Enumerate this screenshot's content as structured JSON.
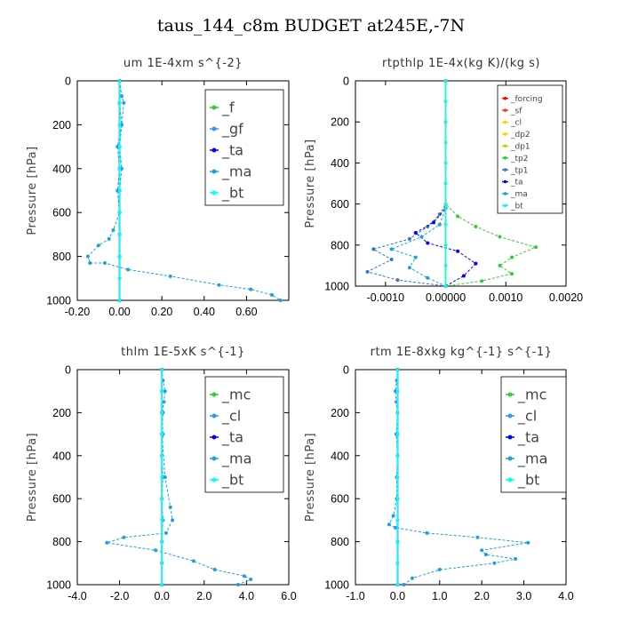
{
  "title": "taus_144_c8m  BUDGET at245E,-7N",
  "colors": {
    "f": "#33cc33",
    "gf": "#3399ee",
    "ta": "#0000ff",
    "ma": "#1f9fdf",
    "bt": "#00ffff",
    "mc": "#33cc33",
    "cl": "#3399ee",
    "forcing": "#ff0000",
    "sf": "#ff3333",
    "dp2": "#ffcc00",
    "dp1": "#cccc00",
    "tp2": "#33cc33",
    "tp1": "#3377cc"
  },
  "chart_data": [
    {
      "type": "line",
      "title": "um   1E-4xm s^{-2}",
      "ylabel": "Pressure [hPa]",
      "xlim": [
        -0.2,
        0.8
      ],
      "ylim": [
        1000,
        0
      ],
      "xticks": [
        -0.2,
        0,
        0.2,
        0.4,
        0.6
      ],
      "xtick_labels": [
        "-0.20",
        "0.00",
        "0.20",
        "0.40",
        "0.60"
      ],
      "yticks": [
        0,
        200,
        400,
        600,
        800,
        1000
      ],
      "ytick_labels": [
        "0",
        "200",
        "400",
        "600",
        "800",
        "1000"
      ],
      "legend": {
        "position": "top-right",
        "font_size": 16
      },
      "series": [
        {
          "name": "_f",
          "color_key": "f",
          "x": [
            0,
            0,
            0,
            0,
            0,
            0,
            0,
            0,
            0,
            0,
            0
          ],
          "y": [
            0,
            100,
            200,
            300,
            400,
            500,
            600,
            700,
            800,
            900,
            1000
          ]
        },
        {
          "name": "_gf",
          "color_key": "gf",
          "x": [
            0,
            0.01,
            0.02,
            0.01,
            0,
            0.01,
            0,
            0,
            0,
            0,
            0
          ],
          "y": [
            0,
            70,
            100,
            200,
            300,
            400,
            500,
            600,
            700,
            800,
            1000
          ]
        },
        {
          "name": "_ta",
          "color_key": "ta",
          "x": [
            0,
            0,
            0,
            0,
            0,
            0,
            0,
            0,
            0,
            0,
            0
          ],
          "y": [
            0,
            100,
            200,
            300,
            400,
            500,
            600,
            700,
            800,
            900,
            1000
          ]
        },
        {
          "name": "_ma",
          "color_key": "ma",
          "x": [
            0,
            0,
            0.01,
            -0.01,
            0,
            -0.01,
            0,
            -0.03,
            -0.05,
            -0.1,
            -0.15,
            -0.14,
            -0.07,
            0.04,
            0.24,
            0.47,
            0.62,
            0.72,
            0.76
          ],
          "y": [
            0,
            100,
            200,
            300,
            400,
            500,
            600,
            680,
            720,
            750,
            800,
            830,
            830,
            860,
            890,
            930,
            950,
            975,
            1000
          ]
        },
        {
          "name": "_bt",
          "color_key": "bt",
          "x": [
            0,
            0,
            0,
            0,
            0,
            0,
            0,
            0,
            0,
            0,
            0
          ],
          "y": [
            0,
            100,
            200,
            300,
            400,
            500,
            600,
            700,
            800,
            900,
            1000
          ]
        }
      ]
    },
    {
      "type": "line",
      "title": "rtpthlp   1E-4x(kg K)/(kg s)",
      "ylabel": "Pressure [hPa]",
      "xlim": [
        -0.0015,
        0.002
      ],
      "ylim": [
        1000,
        0
      ],
      "xticks": [
        -0.001,
        0,
        0.001,
        0.002
      ],
      "xtick_labels": [
        "-0.0010",
        "0.00000",
        "0.0010",
        "0.0020"
      ],
      "yticks": [
        0,
        200,
        400,
        600,
        800,
        1000
      ],
      "ytick_labels": [
        "0",
        "200",
        "400",
        "600",
        "800",
        "1000"
      ],
      "legend": {
        "position": "top-right",
        "font_size": 9
      },
      "series": [
        {
          "name": "_forcing",
          "color_key": "forcing",
          "x": [
            0,
            0,
            0,
            0,
            0,
            0,
            0,
            0,
            0,
            0,
            0
          ],
          "y": [
            0,
            100,
            200,
            300,
            400,
            500,
            600,
            700,
            800,
            900,
            1000
          ]
        },
        {
          "name": "_sf",
          "color_key": "sf",
          "x": [
            0,
            0,
            0,
            0,
            0,
            0,
            0,
            0,
            0,
            0,
            0
          ],
          "y": [
            0,
            100,
            200,
            300,
            400,
            500,
            600,
            700,
            800,
            900,
            1000
          ]
        },
        {
          "name": "_cl",
          "color_key": "dp2",
          "x": [
            0,
            0,
            0,
            0,
            0,
            0,
            0,
            0,
            0,
            0,
            0
          ],
          "y": [
            0,
            100,
            200,
            300,
            400,
            500,
            600,
            700,
            800,
            900,
            1000
          ]
        },
        {
          "name": "_dp2",
          "color_key": "dp2",
          "x": [
            0,
            0,
            0,
            0,
            0,
            0,
            0,
            0,
            0,
            0,
            0
          ],
          "y": [
            0,
            100,
            200,
            300,
            400,
            500,
            600,
            700,
            800,
            900,
            1000
          ]
        },
        {
          "name": "_dp1",
          "color_key": "dp1",
          "x": [
            0,
            0,
            0,
            0,
            0,
            0,
            0,
            0,
            0,
            0,
            0
          ],
          "y": [
            0,
            100,
            200,
            300,
            400,
            500,
            600,
            700,
            800,
            900,
            1000
          ]
        },
        {
          "name": "_tp2",
          "color_key": "tp2",
          "x": [
            0,
            0,
            0.0002,
            0.0005,
            0.0009,
            0.0015,
            0.0011,
            0.0009,
            0.0011,
            0.0006,
            0
          ],
          "y": [
            0,
            600,
            660,
            710,
            760,
            810,
            860,
            900,
            940,
            975,
            1000
          ]
        },
        {
          "name": "_tp1",
          "color_key": "tp1",
          "x": [
            0,
            0,
            -0.0001,
            -0.0003,
            -0.0006,
            -0.0012,
            -0.0009,
            -0.0013,
            -0.0008,
            0
          ],
          "y": [
            0,
            600,
            650,
            710,
            770,
            820,
            870,
            930,
            970,
            1000
          ]
        },
        {
          "name": "_ta",
          "color_key": "ta",
          "x": [
            0,
            0,
            -0.0002,
            -0.0005,
            -0.0003,
            0.0002,
            0.0005,
            0.0003,
            0
          ],
          "y": [
            0,
            620,
            690,
            740,
            790,
            830,
            890,
            950,
            1000
          ]
        },
        {
          "name": "_ma",
          "color_key": "ma",
          "x": [
            0,
            0,
            -0.0001,
            -0.0004,
            -0.0009,
            -0.0005,
            -0.0006,
            -0.0003,
            0
          ],
          "y": [
            0,
            620,
            700,
            760,
            820,
            860,
            910,
            960,
            1000
          ]
        },
        {
          "name": "_bt",
          "color_key": "bt",
          "x": [
            0,
            0,
            0,
            0,
            0,
            0,
            0,
            0,
            0,
            0,
            0
          ],
          "y": [
            0,
            100,
            200,
            300,
            400,
            500,
            600,
            700,
            800,
            900,
            1000
          ]
        }
      ]
    },
    {
      "type": "line",
      "title": "thlm   1E-5xK s^{-1}",
      "ylabel": "Pressure [hPa]",
      "xlim": [
        -4,
        6
      ],
      "ylim": [
        1000,
        0
      ],
      "xticks": [
        -4,
        -2,
        0,
        2,
        4,
        6
      ],
      "xtick_labels": [
        "-4.0",
        "-2.0",
        "0.0",
        "2.0",
        "4.0",
        "6.0"
      ],
      "yticks": [
        0,
        200,
        400,
        600,
        800,
        1000
      ],
      "ytick_labels": [
        "0",
        "200",
        "400",
        "600",
        "800",
        "1000"
      ],
      "legend": {
        "position": "top-right",
        "font_size": 16
      },
      "series": [
        {
          "name": "_mc",
          "color_key": "mc",
          "x": [
            0,
            0,
            0,
            0,
            0,
            0,
            0,
            0,
            0,
            0,
            0
          ],
          "y": [
            0,
            100,
            200,
            300,
            400,
            500,
            600,
            700,
            800,
            900,
            1000
          ]
        },
        {
          "name": "_cl",
          "color_key": "cl",
          "x": [
            0,
            0.05,
            0.15,
            0.1,
            0,
            0.05,
            0,
            0.05,
            0,
            0.05,
            0,
            0,
            0
          ],
          "y": [
            0,
            50,
            100,
            150,
            200,
            300,
            400,
            500,
            600,
            700,
            800,
            900,
            1000
          ]
        },
        {
          "name": "_ta",
          "color_key": "ta",
          "x": [
            0,
            0,
            0,
            0,
            0,
            0,
            0,
            0,
            0,
            0,
            0
          ],
          "y": [
            0,
            100,
            200,
            300,
            400,
            500,
            600,
            700,
            800,
            900,
            1000
          ]
        },
        {
          "name": "_ma",
          "color_key": "ma",
          "x": [
            0,
            0,
            0.05,
            0,
            0.15,
            0.4,
            0.5,
            0.2,
            -1.8,
            -2.6,
            -0.3,
            1.5,
            2.5,
            3.9,
            4.2,
            3.6
          ],
          "y": [
            0,
            100,
            200,
            300,
            500,
            640,
            700,
            760,
            780,
            805,
            840,
            890,
            930,
            960,
            975,
            1000
          ]
        },
        {
          "name": "_bt",
          "color_key": "bt",
          "x": [
            0,
            0,
            0,
            0,
            0,
            0,
            0,
            0,
            0,
            0,
            0
          ],
          "y": [
            0,
            100,
            200,
            300,
            400,
            500,
            600,
            700,
            800,
            900,
            1000
          ]
        }
      ]
    },
    {
      "type": "line",
      "title": "rtm   1E-8xkg kg^{-1} s^{-1}",
      "ylabel": "Pressure [hPa]",
      "xlim": [
        -1,
        4
      ],
      "ylim": [
        1000,
        0
      ],
      "xticks": [
        -1,
        0,
        1,
        2,
        3,
        4
      ],
      "xtick_labels": [
        "-1.0",
        "0.0",
        "1.0",
        "2.0",
        "3.0",
        "4.0"
      ],
      "yticks": [
        0,
        200,
        400,
        600,
        800,
        1000
      ],
      "ytick_labels": [
        "0",
        "200",
        "400",
        "600",
        "800",
        "1000"
      ],
      "legend": {
        "position": "top-right",
        "font_size": 16
      },
      "series": [
        {
          "name": "_mc",
          "color_key": "mc",
          "x": [
            0,
            0,
            0,
            0,
            0,
            0,
            0,
            0,
            0,
            0,
            0
          ],
          "y": [
            0,
            100,
            200,
            300,
            400,
            500,
            600,
            700,
            800,
            900,
            1000
          ]
        },
        {
          "name": "_cl",
          "color_key": "cl",
          "x": [
            0,
            -0.02,
            -0.05,
            -0.03,
            0,
            -0.03,
            0,
            -0.02,
            0,
            0,
            0
          ],
          "y": [
            0,
            50,
            100,
            150,
            200,
            300,
            400,
            500,
            600,
            800,
            1000
          ]
        },
        {
          "name": "_ta",
          "color_key": "ta",
          "x": [
            0,
            0,
            0,
            0,
            0,
            0,
            0,
            0,
            0,
            0,
            0
          ],
          "y": [
            0,
            100,
            200,
            300,
            400,
            500,
            600,
            700,
            800,
            900,
            1000
          ]
        },
        {
          "name": "_ma",
          "color_key": "ma",
          "x": [
            0,
            0,
            -0.02,
            -0.1,
            -0.2,
            -0.05,
            0.7,
            1.9,
            3.1,
            2.0,
            2.1,
            2.8,
            2.3,
            1.0,
            0.35,
            0.15
          ],
          "y": [
            0,
            300,
            600,
            680,
            720,
            735,
            760,
            780,
            805,
            840,
            860,
            880,
            900,
            930,
            970,
            1000
          ]
        },
        {
          "name": "_bt",
          "color_key": "bt",
          "x": [
            0,
            0,
            0,
            0,
            0,
            0,
            0,
            0,
            0,
            0,
            0
          ],
          "y": [
            0,
            100,
            200,
            300,
            400,
            500,
            600,
            700,
            800,
            900,
            1000
          ]
        }
      ]
    }
  ]
}
